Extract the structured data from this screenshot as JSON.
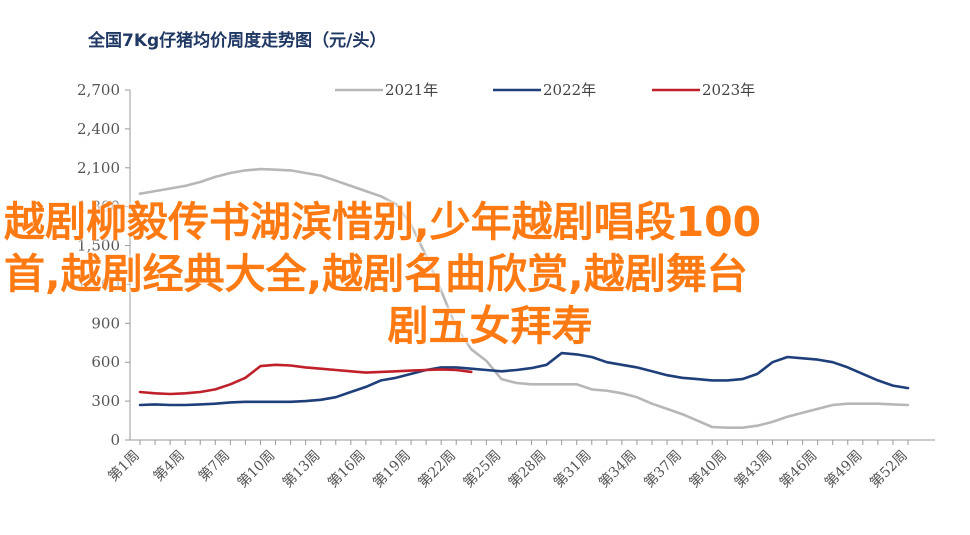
{
  "overlay": {
    "line1": "越剧柳毅传书湖滨惜别,少年越剧唱段100",
    "line2": "首,越剧经典大全,越剧名曲欣赏,越剧舞台",
    "line3": "剧五女拜寿"
  },
  "chart_data": {
    "type": "line",
    "title": "全国7Kg仔猪均价周度走势图（元/头）",
    "xlabel": "",
    "ylabel": "",
    "ylim": [
      0,
      2700
    ],
    "yticks": [
      0,
      300,
      600,
      900,
      1200,
      1500,
      1800,
      2100,
      2400,
      2700
    ],
    "ytick_labels": [
      "0",
      "300",
      "600",
      "900",
      "1,200",
      "1,500",
      "1,800",
      "2,100",
      "2,400",
      "2,700"
    ],
    "xlim": [
      1,
      52
    ],
    "xticks": [
      1,
      4,
      7,
      10,
      13,
      16,
      19,
      22,
      25,
      28,
      31,
      34,
      37,
      40,
      43,
      46,
      49,
      52
    ],
    "xtick_labels": [
      "第1周",
      "第4周",
      "第7周",
      "第10周",
      "第13周",
      "第16周",
      "第19周",
      "第22周",
      "第25周",
      "第28周",
      "第31周",
      "第34周",
      "第37周",
      "第40周",
      "第43周",
      "第46周",
      "第49周",
      "第52周"
    ],
    "grid": false,
    "legend": "top",
    "series": [
      {
        "name": "2021年",
        "color": "#b7b7b7",
        "x": [
          1,
          2,
          3,
          4,
          5,
          6,
          7,
          8,
          9,
          10,
          11,
          12,
          13,
          14,
          15,
          16,
          17,
          18,
          19,
          20,
          21,
          22,
          23,
          24,
          25,
          26,
          27,
          28,
          29,
          30,
          31,
          32,
          33,
          34,
          35,
          36,
          37,
          38,
          39,
          40,
          41,
          42,
          43,
          44,
          45,
          46,
          47,
          48,
          49,
          50,
          51,
          52
        ],
        "values": [
          1900,
          1920,
          1940,
          1960,
          1990,
          2030,
          2060,
          2080,
          2090,
          2085,
          2080,
          2060,
          2040,
          2000,
          1960,
          1920,
          1880,
          1820,
          1660,
          1420,
          1150,
          870,
          700,
          610,
          470,
          440,
          430,
          430,
          430,
          430,
          390,
          380,
          360,
          330,
          280,
          240,
          200,
          150,
          100,
          95,
          95,
          110,
          140,
          180,
          210,
          240,
          270,
          280,
          280,
          280,
          275,
          270
        ]
      },
      {
        "name": "2022年",
        "color": "#1f3f7a",
        "x": [
          1,
          2,
          3,
          4,
          5,
          6,
          7,
          8,
          9,
          10,
          11,
          12,
          13,
          14,
          15,
          16,
          17,
          18,
          19,
          20,
          21,
          22,
          23,
          24,
          25,
          26,
          27,
          28,
          29,
          30,
          31,
          32,
          33,
          34,
          35,
          36,
          37,
          38,
          39,
          40,
          41,
          42,
          43,
          44,
          45,
          46,
          47,
          48,
          49,
          50,
          51,
          52
        ],
        "values": [
          270,
          275,
          270,
          270,
          275,
          280,
          290,
          295,
          295,
          295,
          295,
          300,
          310,
          330,
          370,
          410,
          460,
          480,
          510,
          540,
          560,
          560,
          550,
          540,
          530,
          540,
          555,
          580,
          670,
          660,
          640,
          600,
          580,
          560,
          530,
          500,
          480,
          470,
          460,
          460,
          470,
          510,
          600,
          640,
          630,
          620,
          600,
          560,
          510,
          460,
          420,
          400
        ]
      },
      {
        "name": "2023年",
        "color": "#c0202a",
        "x": [
          1,
          2,
          3,
          4,
          5,
          6,
          7,
          8,
          9,
          10,
          11,
          12,
          13,
          14,
          15,
          16,
          17,
          18,
          19,
          20,
          21,
          22,
          23
        ],
        "values": [
          370,
          360,
          355,
          360,
          370,
          390,
          430,
          480,
          570,
          580,
          575,
          560,
          550,
          540,
          530,
          520,
          525,
          530,
          535,
          540,
          545,
          540,
          525
        ]
      }
    ]
  }
}
